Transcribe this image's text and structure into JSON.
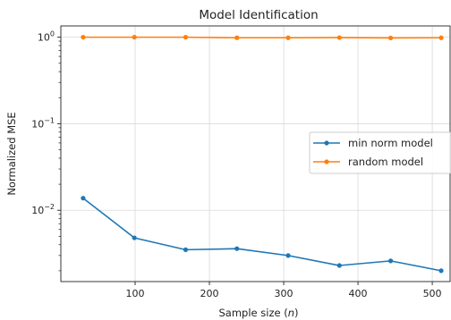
{
  "chart_data": {
    "type": "line",
    "title": "Model Identification",
    "xlabel": "Sample size (n)",
    "xlabel_prefix": "Sample size (",
    "xlabel_var": "n",
    "xlabel_suffix": ")",
    "ylabel": "Normalized MSE",
    "yscale": "log",
    "xlim": [
      0,
      524
    ],
    "ylim": [
      0.0015,
      1.35
    ],
    "xticks": [
      100,
      200,
      300,
      400,
      500
    ],
    "yticks": [
      {
        "value": 0.01,
        "base": "10",
        "exp": "−2"
      },
      {
        "value": 0.1,
        "base": "10",
        "exp": "−1"
      },
      {
        "value": 1,
        "base": "10",
        "exp": "0"
      }
    ],
    "grid": true,
    "legend_position": "center-right",
    "x": [
      30,
      99,
      168,
      237,
      306,
      375,
      444,
      512
    ],
    "series": [
      {
        "name": "min norm model",
        "color": "#1f77b4",
        "marker": "circle",
        "values": [
          0.0138,
          0.0048,
          0.0035,
          0.0036,
          0.003,
          0.0023,
          0.0026,
          0.002
        ]
      },
      {
        "name": "random model",
        "color": "#ff7f0e",
        "marker": "circle",
        "values": [
          1.0,
          1.0,
          1.0,
          0.985,
          0.985,
          0.99,
          0.98,
          0.985
        ]
      }
    ]
  }
}
